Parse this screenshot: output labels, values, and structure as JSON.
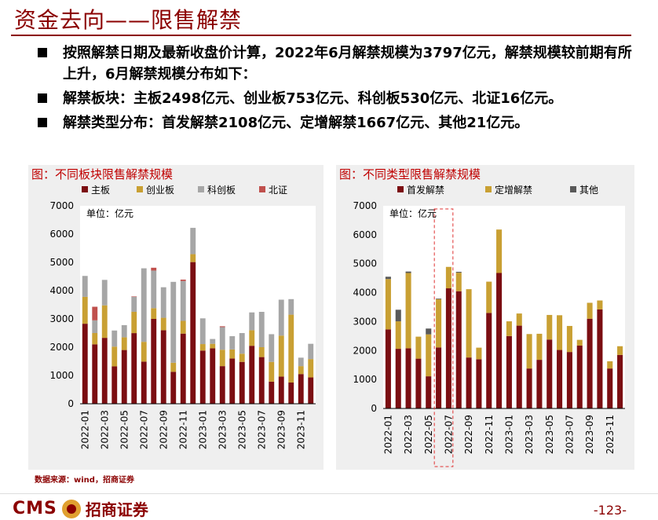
{
  "page": {
    "title": "资金去向——限售解禁",
    "bullets": [
      "按照解禁日期及最新收盘价计算，2022年6月解禁规模为3797亿元，解禁规模较前期有所上升，6月解禁规模分布如下：",
      "解禁板块：主板2498亿元、创业板753亿元、科创板530亿元、北证16亿元。",
      "解禁类型分布：首发解禁2108亿元、定增解禁1667亿元、其他21亿元。"
    ],
    "source": "数据来源：wind，招商证券",
    "logo_text": "CMS",
    "logo_cn": "招商证券",
    "page_number": "-123-"
  },
  "colors": {
    "red": "#7B0E12",
    "gold": "#C9A033",
    "gray": "#A6A6A6",
    "pink": "#C0504D",
    "darkgray": "#595959",
    "title": "#8B0000"
  },
  "chart_data": [
    {
      "type": "bar",
      "stacked": true,
      "title": "图：不同板块限售解禁规模",
      "unit_label": "单位：亿元",
      "ylim": [
        0,
        7000
      ],
      "yticks": [
        0,
        1000,
        2000,
        3000,
        4000,
        5000,
        6000,
        7000
      ],
      "categories": [
        "2022-01",
        "2022-02",
        "2022-03",
        "2022-04",
        "2022-05",
        "2022-06",
        "2022-07",
        "2022-08",
        "2022-09",
        "2022-10",
        "2022-11",
        "2022-12",
        "2023-01",
        "2023-02",
        "2023-03",
        "2023-04",
        "2023-05",
        "2023-06",
        "2023-07",
        "2023-08",
        "2023-09",
        "2023-10",
        "2023-11",
        "2023-12"
      ],
      "xtick_labels": [
        "2022-01",
        "2022-03",
        "2022-05",
        "2022-07",
        "2022-09",
        "2022-11",
        "2023-01",
        "2023-03",
        "2023-05",
        "2023-07",
        "2023-09",
        "2023-11"
      ],
      "series": [
        {
          "name": "主板",
          "color": "red",
          "values": [
            2830,
            2100,
            2330,
            1320,
            1900,
            2498,
            1490,
            3000,
            2600,
            1130,
            2480,
            5010,
            1880,
            1960,
            1330,
            1600,
            1480,
            2050,
            1650,
            780,
            960,
            750,
            1050,
            930
          ]
        },
        {
          "name": "创业板",
          "color": "gold",
          "values": [
            950,
            400,
            1150,
            700,
            450,
            753,
            700,
            380,
            440,
            320,
            450,
            280,
            230,
            160,
            580,
            320,
            290,
            550,
            350,
            700,
            1450,
            2400,
            280,
            650
          ]
        },
        {
          "name": "科创板",
          "color": "gray",
          "values": [
            740,
            450,
            900,
            570,
            430,
            530,
            2600,
            1330,
            1080,
            2860,
            1410,
            930,
            910,
            170,
            800,
            470,
            730,
            630,
            1250,
            980,
            1270,
            550,
            300,
            540
          ]
        },
        {
          "name": "北证",
          "color": "pink",
          "values": [
            0,
            480,
            0,
            0,
            0,
            16,
            0,
            100,
            0,
            0,
            50,
            0,
            0,
            0,
            30,
            0,
            0,
            0,
            0,
            0,
            0,
            0,
            0,
            0
          ]
        }
      ]
    },
    {
      "type": "bar",
      "stacked": true,
      "title": "图：不同类型限售解禁规模",
      "unit_label": "单位：亿元",
      "ylim": [
        0,
        7000
      ],
      "yticks": [
        0,
        1000,
        2000,
        3000,
        4000,
        5000,
        6000,
        7000
      ],
      "categories": [
        "2022-01",
        "2022-02",
        "2022-03",
        "2022-04",
        "2022-05",
        "2022-06",
        "2022-07",
        "2022-08",
        "2022-09",
        "2022-10",
        "2022-11",
        "2022-12",
        "2023-01",
        "2023-02",
        "2023-03",
        "2023-04",
        "2023-05",
        "2023-06",
        "2023-07",
        "2023-08",
        "2023-09",
        "2023-10",
        "2023-11",
        "2023-12"
      ],
      "xtick_labels": [
        "2022-01",
        "2022-03",
        "2022-05",
        "2022-07",
        "2022-09",
        "2022-11",
        "2023-01",
        "2023-03",
        "2023-05",
        "2023-07",
        "2023-09",
        "2023-11"
      ],
      "highlight": [
        "2022-06",
        "2022-07"
      ],
      "series": [
        {
          "name": "首发解禁",
          "color": "red",
          "values": [
            2730,
            2060,
            2080,
            1720,
            1110,
            2108,
            4150,
            4050,
            1760,
            1700,
            3300,
            4680,
            2500,
            2860,
            1380,
            1680,
            2380,
            2020,
            1950,
            2170,
            3100,
            3420,
            1380,
            1850
          ]
        },
        {
          "name": "定增解禁",
          "color": "gold",
          "values": [
            1740,
            950,
            2600,
            760,
            1450,
            1667,
            740,
            640,
            2360,
            400,
            1080,
            1500,
            510,
            420,
            1190,
            900,
            850,
            1200,
            900,
            200,
            550,
            310,
            250,
            300
          ]
        },
        {
          "name": "其他",
          "color": "darkgray",
          "values": [
            80,
            400,
            50,
            0,
            200,
            21,
            0,
            30,
            0,
            0,
            0,
            0,
            0,
            0,
            0,
            0,
            0,
            0,
            0,
            0,
            0,
            0,
            0,
            0
          ]
        }
      ]
    }
  ]
}
